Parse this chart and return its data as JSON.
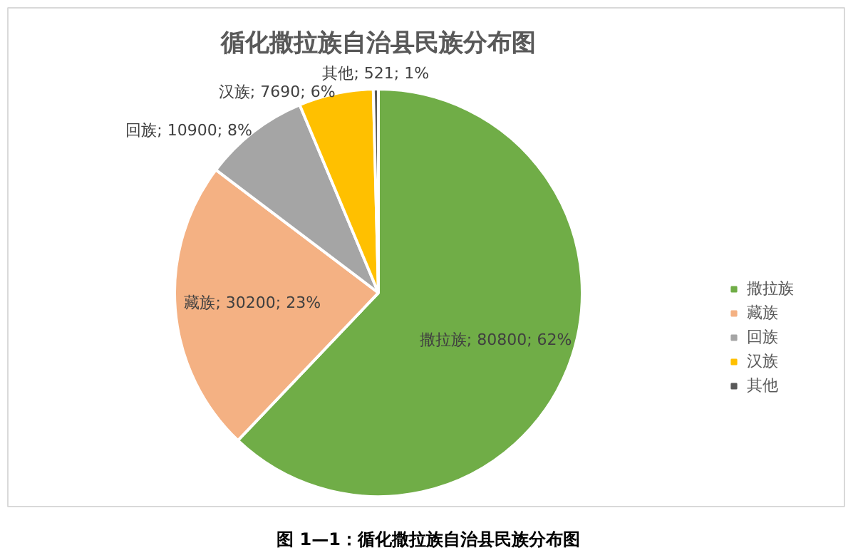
{
  "chart_data": {
    "type": "pie",
    "title": "循化撒拉族自治县民族分布图",
    "categories": [
      "撒拉族",
      "藏族",
      "回族",
      "汉族",
      "其他"
    ],
    "values": [
      80800,
      30200,
      10900,
      7690,
      521
    ],
    "colors": [
      "#70ad47",
      "#f4b183",
      "#a5a5a5",
      "#ffc000",
      "#595959"
    ],
    "value_labels": [
      "撒拉族; 80800; 62%",
      "藏族; 30200; 23%",
      "回族; 10900; 8%",
      "汉族; 7690; 6%",
      "其他; 521; 1%"
    ],
    "legend": "right",
    "annotations": [
      "图 1—1：循化撒拉族自治县民族分布图"
    ]
  }
}
